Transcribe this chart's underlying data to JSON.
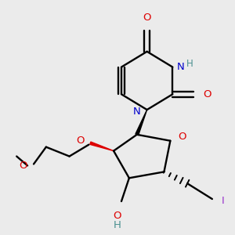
{
  "background_color": "#ebebeb",
  "figsize": [
    3.0,
    3.0
  ],
  "dpi": 100,
  "label_colors": {
    "O": "#dd0000",
    "N": "#0000cc",
    "I": "#9933cc",
    "C": "#000000",
    "H": "#4a9090"
  }
}
